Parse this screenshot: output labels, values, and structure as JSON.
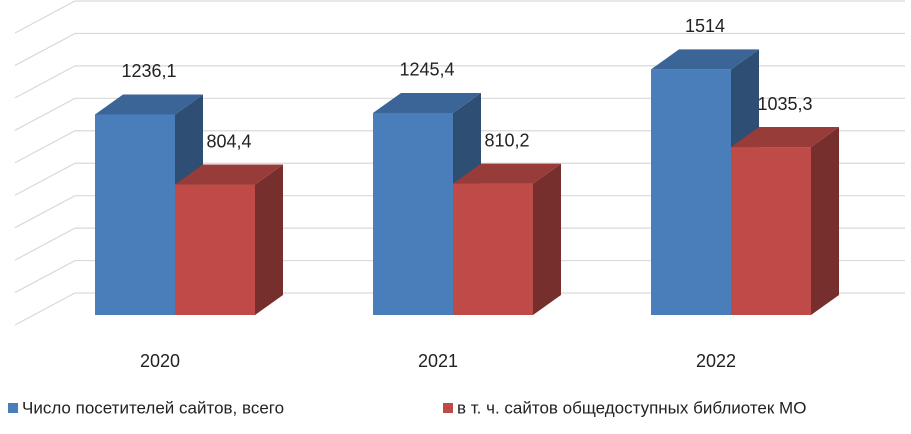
{
  "chart_data": {
    "type": "bar3d",
    "categories": [
      "2020",
      "2021",
      "2022"
    ],
    "series": [
      {
        "name": "Число посетителей сайтов, всего",
        "color": "#4a7ebb",
        "values": [
          1236.1,
          1245.4,
          1514
        ],
        "value_labels": [
          "1236,1",
          "1245,4",
          "1514"
        ]
      },
      {
        "name": "в т. ч. сайтов общедоступных библиотек МО",
        "color": "#be4b48",
        "values": [
          804.4,
          810.2,
          1035.3
        ],
        "value_labels": [
          "804,4",
          "810,2",
          "1035,3"
        ]
      }
    ],
    "ylim": [
      0,
      1800
    ],
    "yticks": [
      0,
      200,
      400,
      600,
      800,
      1000,
      1200,
      1400,
      1600,
      1800
    ],
    "grid": true,
    "legend": "bottom"
  }
}
